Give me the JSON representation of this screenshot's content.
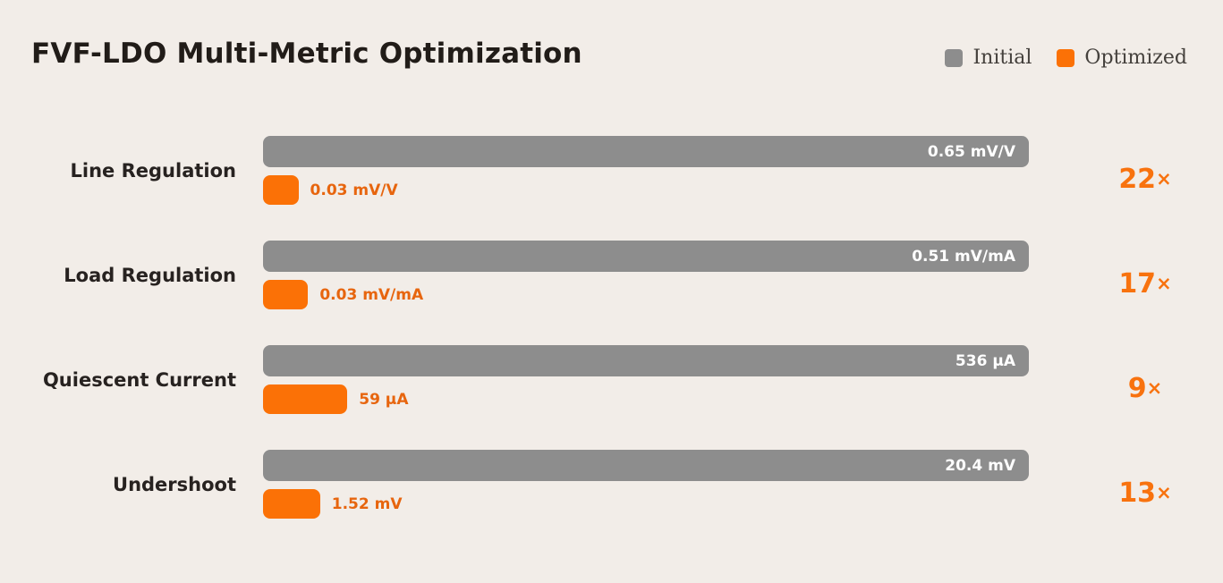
{
  "title": "FVF-LDO Multi-Metric Optimization",
  "legend": {
    "initial_label": "Initial",
    "optimized_label": "Optimized"
  },
  "colors": {
    "background": "#f2ede8",
    "title_text": "#211c18",
    "label_text": "#272220",
    "legend_text": "#44403c",
    "bar_initial": "#8d8d8d",
    "bar_optimized": "#fb7106",
    "bar_value_text": "#ffffff",
    "optimized_value_text": "#e7650e",
    "factor_text": "#f8720e"
  },
  "chart_data": {
    "type": "bar",
    "orientation": "horizontal",
    "title": "FVF-LDO Multi-Metric Optimization",
    "categories": [
      "Line Regulation",
      "Load Regulation",
      "Quiescent Current",
      "Undershoot"
    ],
    "series": [
      {
        "name": "Initial",
        "values": [
          0.65,
          0.51,
          536,
          20.4
        ],
        "labels": [
          "0.65 mV/V",
          "0.51 mV/mA",
          "536 µA",
          "20.4 mV"
        ],
        "color": "#8d8d8d"
      },
      {
        "name": "Optimized",
        "values": [
          0.03,
          0.03,
          59,
          1.52
        ],
        "labels": [
          "0.03 mV/V",
          "0.03 mV/mA",
          "59 µA",
          "1.52 mV"
        ],
        "color": "#fb7106"
      }
    ],
    "improvement_factors": [
      "22×",
      "17×",
      "9×",
      "13×"
    ],
    "legend_position": "top-right",
    "grid": false,
    "axes_shown": false,
    "normalization": "each row scaled so the Initial bar spans the full track width"
  },
  "rows": [
    {
      "label": "Line Regulation",
      "initial_value": 0.65,
      "optimized_value": 0.03,
      "initial_label": "0.65 mV/V",
      "optimized_label": "0.03 mV/V",
      "factor": "22",
      "times": "×"
    },
    {
      "label": "Load Regulation",
      "initial_value": 0.51,
      "optimized_value": 0.03,
      "initial_label": "0.51 mV/mA",
      "optimized_label": "0.03 mV/mA",
      "factor": "17",
      "times": "×"
    },
    {
      "label": "Quiescent Current",
      "initial_value": 536,
      "optimized_value": 59,
      "initial_label": "536 µA",
      "optimized_label": "59 µA",
      "factor": "9",
      "times": "×"
    },
    {
      "label": "Undershoot",
      "initial_value": 20.4,
      "optimized_value": 1.52,
      "initial_label": "20.4 mV",
      "optimized_label": "1.52 mV",
      "factor": "13",
      "times": "×"
    }
  ]
}
